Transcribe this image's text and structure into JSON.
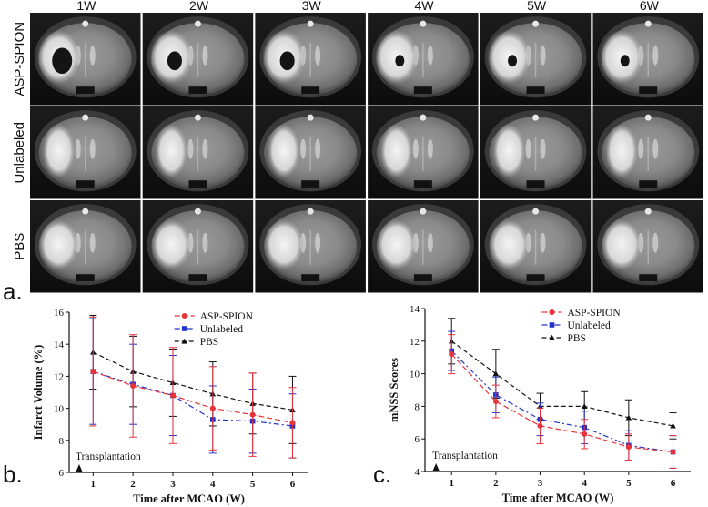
{
  "panel_a": {
    "panel_label": "a.",
    "column_headers": [
      "1W",
      "2W",
      "3W",
      "4W",
      "5W",
      "6W"
    ],
    "row_labels": [
      "ASP-SPION",
      "Unlabeled",
      "PBS"
    ]
  },
  "chart_data": [
    {
      "type": "line",
      "panel_label": "b.",
      "xlabel": "Time after MCAO (W)",
      "ylabel": "Infarct Volume (%)",
      "xlim": [
        0.4,
        6.4
      ],
      "ylim": [
        6,
        16
      ],
      "x_ticks": [
        1,
        2,
        3,
        4,
        5,
        6
      ],
      "y_ticks": [
        6,
        8,
        10,
        12,
        14,
        16
      ],
      "annotation": "Transplantation",
      "annotation_x": 0.65,
      "legend_position": "top-right",
      "series": [
        {
          "name": "ASP-SPION",
          "color": "#e8333a",
          "marker": "circle",
          "dash": "6,3",
          "x": [
            1,
            2,
            3,
            4,
            5,
            6
          ],
          "y": [
            12.3,
            11.4,
            10.8,
            10.0,
            9.6,
            9.1
          ],
          "err": [
            3.4,
            3.2,
            3.0,
            2.6,
            2.6,
            2.2
          ]
        },
        {
          "name": "Unlabeled",
          "color": "#2233cc",
          "marker": "square",
          "dash": "6,3,2,3",
          "x": [
            1,
            2,
            3,
            4,
            5,
            6
          ],
          "y": [
            12.3,
            11.5,
            10.8,
            9.3,
            9.2,
            8.9
          ],
          "err": [
            3.3,
            2.5,
            2.5,
            2.1,
            2.0,
            2.0
          ]
        },
        {
          "name": "PBS",
          "color": "#111111",
          "marker": "triangle",
          "dash": "5,3",
          "x": [
            1,
            2,
            3,
            4,
            5,
            6
          ],
          "y": [
            13.5,
            12.3,
            11.6,
            10.9,
            10.3,
            9.9
          ],
          "err": [
            2.3,
            2.2,
            2.1,
            2.0,
            1.9,
            2.1
          ]
        }
      ]
    },
    {
      "type": "line",
      "panel_label": "c.",
      "xlabel": "Time after MCAO (W)",
      "ylabel": "mNSS Scores",
      "xlim": [
        0.4,
        6.4
      ],
      "ylim": [
        4,
        14
      ],
      "x_ticks": [
        1,
        2,
        3,
        4,
        5,
        6
      ],
      "y_ticks": [
        4,
        6,
        8,
        10,
        12,
        14
      ],
      "annotation": "Transplantation",
      "annotation_x": 0.65,
      "legend_position": "top-right",
      "series": [
        {
          "name": "ASP-SPION",
          "color": "#e8333a",
          "marker": "circle",
          "dash": "6,3",
          "x": [
            1,
            2,
            3,
            4,
            5,
            6
          ],
          "y": [
            11.2,
            8.3,
            6.8,
            6.3,
            5.5,
            5.2
          ],
          "err": [
            1.2,
            1.0,
            1.1,
            0.9,
            0.8,
            1.0
          ]
        },
        {
          "name": "Unlabeled",
          "color": "#2233cc",
          "marker": "square",
          "dash": "6,3,2,3",
          "x": [
            1,
            2,
            3,
            4,
            5,
            6
          ],
          "y": [
            11.4,
            8.7,
            7.2,
            6.7,
            5.6,
            5.2
          ],
          "err": [
            1.2,
            1.1,
            1.0,
            1.0,
            0.9,
            1.0
          ]
        },
        {
          "name": "PBS",
          "color": "#111111",
          "marker": "triangle",
          "dash": "5,3",
          "x": [
            1,
            2,
            3,
            4,
            5,
            6
          ],
          "y": [
            12.0,
            10.0,
            8.0,
            8.0,
            7.3,
            6.8
          ],
          "err": [
            1.4,
            1.5,
            0.8,
            0.9,
            1.1,
            0.8
          ]
        }
      ]
    }
  ]
}
